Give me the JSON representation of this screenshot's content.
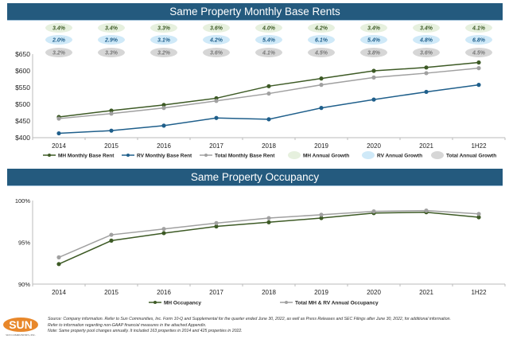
{
  "chart_data": [
    {
      "type": "line",
      "title": "Same Property Monthly Base Rents",
      "categories": [
        "2014",
        "2015",
        "2016",
        "2017",
        "2018",
        "2019",
        "2020",
        "2021",
        "1H22"
      ],
      "ylim": [
        400,
        650
      ],
      "yticks": [
        "$400",
        "$450",
        "$500",
        "$550",
        "$600",
        "$650"
      ],
      "series": [
        {
          "name": "MH Monthly Base Rent",
          "color": "#3d5a25",
          "values": [
            462,
            481,
            498,
            518,
            554,
            577,
            600,
            610,
            625
          ]
        },
        {
          "name": "RV Monthly Base Rent",
          "color": "#1f5f8b",
          "values": [
            413,
            421,
            436,
            459,
            455,
            489,
            514,
            537,
            558
          ]
        },
        {
          "name": "Total Monthly Base Rent",
          "color": "#a0a0a0",
          "values": [
            457,
            472,
            489,
            510,
            532,
            558,
            580,
            593,
            608
          ]
        }
      ],
      "growth_rows": [
        {
          "name": "MH Annual Growth",
          "fill": "#e6f0de",
          "text": "#3d5a25",
          "values": [
            "3.4%",
            "3.4%",
            "3.3%",
            "3.6%",
            "4.0%",
            "4.2%",
            "3.4%",
            "3.4%",
            "4.1%"
          ]
        },
        {
          "name": "RV Annual Growth",
          "fill": "#cfe9f8",
          "text": "#1f5f8b",
          "values": [
            "2.0%",
            "2.9%",
            "3.1%",
            "4.2%",
            "5.4%",
            "6.1%",
            "5.4%",
            "4.8%",
            "6.8%"
          ]
        },
        {
          "name": "Total Annual Growth",
          "fill": "#d6d6d6",
          "text": "#777777",
          "values": [
            "3.2%",
            "3.3%",
            "3.2%",
            "3.6%",
            "4.1%",
            "4.5%",
            "3.8%",
            "3.6%",
            "4.5%"
          ]
        }
      ],
      "legend": "bottom",
      "grid": false
    },
    {
      "type": "line",
      "title": "Same Property Occupancy",
      "categories": [
        "2014",
        "2015",
        "2016",
        "2017",
        "2018",
        "2019",
        "2020",
        "2021",
        "1H22"
      ],
      "ylim": [
        90,
        100
      ],
      "yticks": [
        "90%",
        "95%",
        "100%"
      ],
      "series": [
        {
          "name": "MH Occupancy",
          "color": "#3d5a25",
          "values": [
            92.4,
            95.2,
            96.1,
            96.9,
            97.4,
            97.9,
            98.5,
            98.6,
            98.0
          ]
        },
        {
          "name": "Total MH & RV Annual Occupancy",
          "color": "#a0a0a0",
          "values": [
            93.2,
            95.9,
            96.6,
            97.3,
            97.9,
            98.3,
            98.7,
            98.8,
            98.4
          ]
        }
      ],
      "legend": "bottom",
      "grid": false
    }
  ],
  "footer": {
    "lines": [
      "Source: Company information. Refer to Sun Communities, Inc. Form 10-Q and Supplemental for the quarter ended June 30, 2022, as well as Press Releases and SEC Filings after June 30, 2022, for additional information.",
      "Refer to information regarding non-GAAP financial measures in the attached Appendix.",
      "Note: Same property pool changes annually. It included 163 properties in 2014 and 425 properties in 2022."
    ],
    "logo_text": "SUN",
    "logo_subtext": "SUN COMMUNITIES, INC."
  }
}
